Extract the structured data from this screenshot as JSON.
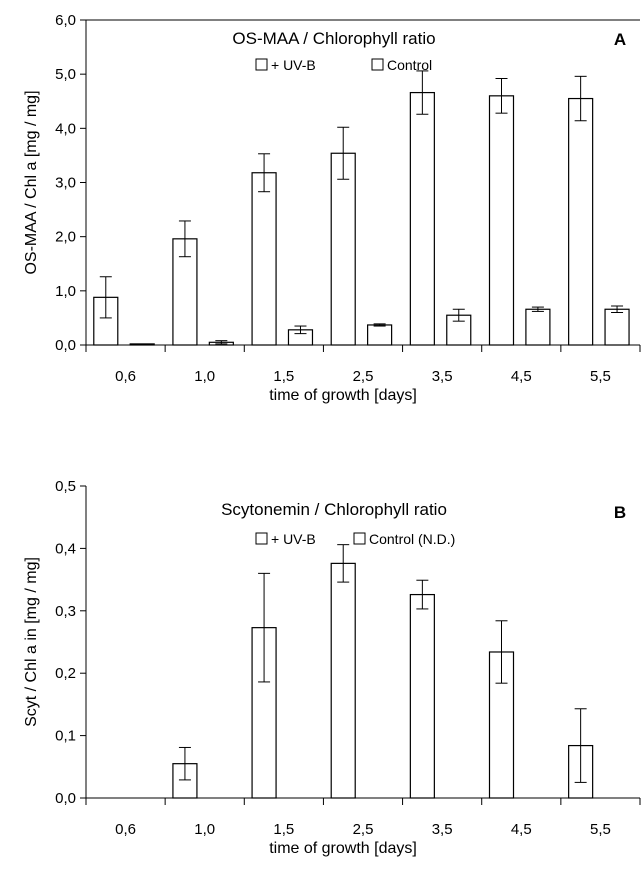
{
  "chart_data": [
    {
      "type": "bar",
      "panel": "A",
      "title": "OS-MAA / Chlorophyll ratio",
      "xlabel": "time of growth [days]",
      "ylabel": "OS-MAA / Chl a [mg / mg]",
      "categories": [
        "0,6",
        "1,0",
        "1,5",
        "2,5",
        "3,5",
        "4,5",
        "5,5"
      ],
      "ylim": [
        0,
        6
      ],
      "yticks": [
        "0,0",
        "1,0",
        "2,0",
        "3,0",
        "4,0",
        "5,0",
        "6,0"
      ],
      "legend_placement": "top-center",
      "series": [
        {
          "name": "+ UV-B",
          "values": [
            0.88,
            1.96,
            3.18,
            3.54,
            4.66,
            4.6,
            4.55
          ],
          "errors": [
            0.38,
            0.33,
            0.35,
            0.48,
            0.4,
            0.32,
            0.41
          ]
        },
        {
          "name": "Control",
          "values": [
            0.02,
            0.05,
            0.28,
            0.37,
            0.55,
            0.66,
            0.66
          ],
          "errors": [
            0.0,
            0.03,
            0.07,
            0.02,
            0.11,
            0.04,
            0.06
          ]
        }
      ]
    },
    {
      "type": "bar",
      "panel": "B",
      "title": "Scytonemin / Chlorophyll ratio",
      "xlabel": "time of growth [days]",
      "ylabel": "Scyt / Chl a in [mg / mg]",
      "categories": [
        "0,6",
        "1,0",
        "1,5",
        "2,5",
        "3,5",
        "4,5",
        "5,5"
      ],
      "ylim": [
        0,
        0.5
      ],
      "yticks": [
        "0,0",
        "0,1",
        "0,2",
        "0,3",
        "0,4",
        "0,5"
      ],
      "legend_placement": "top-center",
      "series": [
        {
          "name": "+ UV-B",
          "values": [
            0,
            0.055,
            0.273,
            0.376,
            0.326,
            0.234,
            0.084
          ],
          "errors": [
            0,
            0.026,
            0.087,
            0.03,
            0.023,
            0.05,
            0.059
          ]
        },
        {
          "name": "Control (N.D.)",
          "values": [
            0,
            0,
            0,
            0,
            0,
            0,
            0
          ],
          "errors": [
            0,
            0,
            0,
            0,
            0,
            0,
            0
          ]
        }
      ]
    }
  ]
}
